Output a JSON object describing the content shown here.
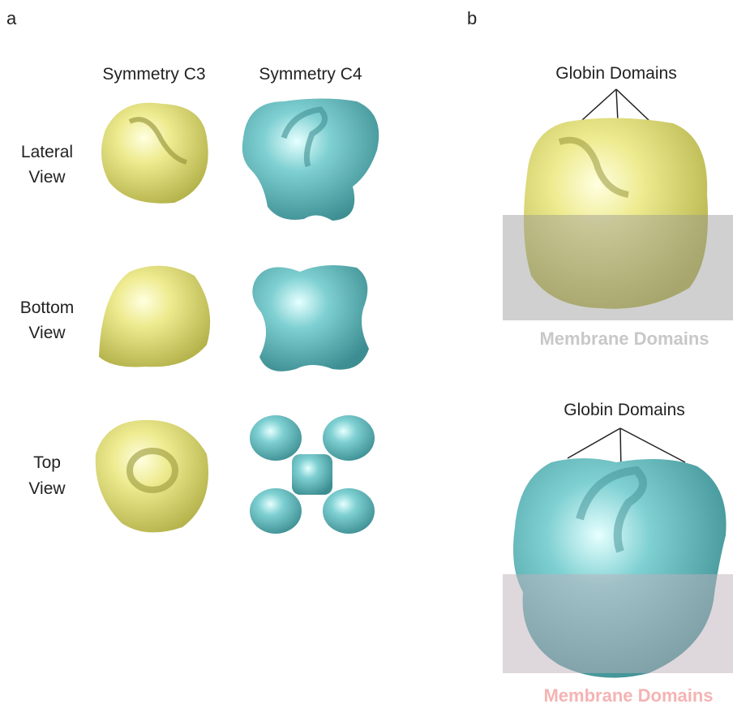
{
  "panel_a": {
    "label": "a",
    "columns": [
      "Symmetry C3",
      "Symmetry C4"
    ],
    "rows": [
      [
        "Lateral",
        "View"
      ],
      [
        "Bottom",
        "View"
      ],
      [
        "Top",
        "View"
      ]
    ]
  },
  "panel_b": {
    "label": "b",
    "top": {
      "globin_label": "Globin Domains",
      "membrane_label": "Membrane Domains"
    },
    "bottom": {
      "globin_label": "Globin Domains",
      "membrane_label": "Membrane Domains"
    }
  }
}
